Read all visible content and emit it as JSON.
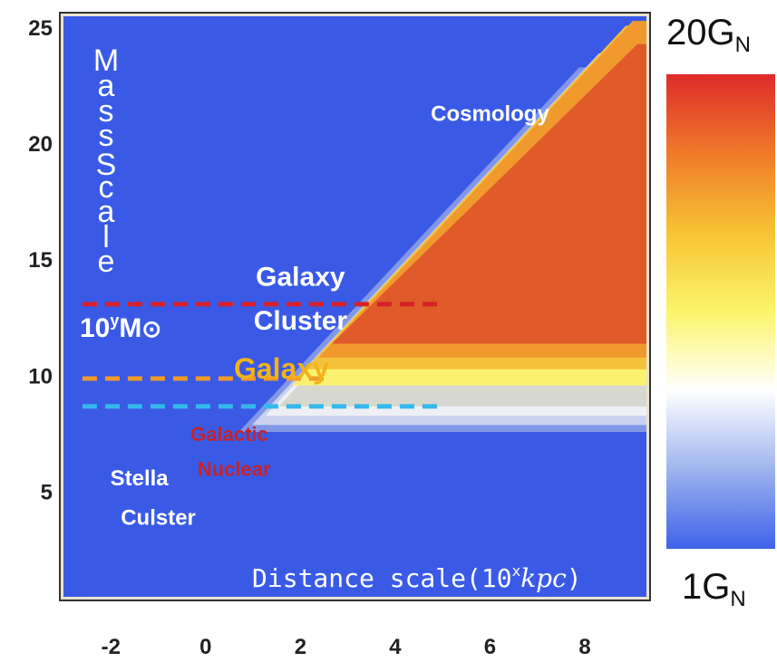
{
  "chart_data": {
    "type": "heatmap",
    "title": "",
    "xlabel_parts": [
      "Distance scale(10",
      "x",
      "kpc",
      ")"
    ],
    "ylabel_letters": [
      "M",
      "a",
      "s",
      "s",
      "S",
      "c",
      "a",
      "l",
      "e"
    ],
    "xlim": [
      -3,
      9.3
    ],
    "ylim": [
      0.5,
      25.5
    ],
    "x_ticks": [
      -2,
      0,
      2,
      4,
      6,
      8
    ],
    "y_ticks": [
      5,
      10,
      15,
      20,
      25
    ],
    "mass_unit": {
      "prefix": "10",
      "sup": "y",
      "base": "M",
      "symbol": "⊙"
    },
    "colorbar": {
      "max_label": {
        "main": "20G",
        "sub": "N"
      },
      "min_label": {
        "main": "1G",
        "sub": "N"
      },
      "stops": [
        "#dd2b2b",
        "#f07a2a",
        "#f7c334",
        "#fbf56a",
        "#ffffff",
        "#9db4ee",
        "#3f62ea"
      ]
    },
    "colors": {
      "background": "#3a5ae6",
      "cosmology_region": "#e05a2a",
      "red_line": "#d8202a",
      "orange_line": "#f09a28",
      "cyan_line": "#33b8ec",
      "galaxy_label": "#f2b21a",
      "nuclear_label": "#c3242c"
    },
    "reference_lines": [
      {
        "name": "galaxy-cluster-line",
        "y": 13.1,
        "x": [
          -2.6,
          5.0
        ],
        "color": "#d8202a"
      },
      {
        "name": "galaxy-line",
        "y": 9.9,
        "x": [
          -2.6,
          2.6
        ],
        "color": "#f09a28"
      },
      {
        "name": "galactic-nuclear-line",
        "y": 8.7,
        "x": [
          -2.6,
          5.0
        ],
        "color": "#33b8ec"
      }
    ],
    "annotations": [
      {
        "id": "cosmology",
        "text": "Cosmology",
        "x": 6.0,
        "y": 21.0
      },
      {
        "id": "galaxy-cluster-1",
        "text": "Galaxy",
        "x": 2.0,
        "y": 13.9
      },
      {
        "id": "galaxy-cluster-2",
        "text": "Cluster",
        "x": 2.0,
        "y": 12.0
      },
      {
        "id": "galaxy",
        "text": "Galaxy",
        "x": 1.6,
        "y": 9.9
      },
      {
        "id": "galactic-nuclear-1",
        "text": "Galactic",
        "x": 0.5,
        "y": 7.2
      },
      {
        "id": "galactic-nuclear-2",
        "text": "Nuclear",
        "x": 0.6,
        "y": 5.7
      },
      {
        "id": "stella-cluster-1",
        "text": "Stella",
        "x": -1.4,
        "y": 5.3
      },
      {
        "id": "stella-cluster-2",
        "text": "Culster",
        "x": -1.0,
        "y": 3.6
      }
    ]
  }
}
